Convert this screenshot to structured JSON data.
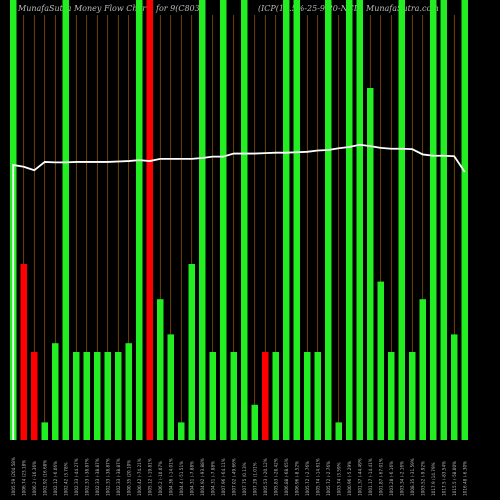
{
  "header": {
    "left": "MunafaSutra Money Flow Charts for 9(C803",
    "mid": "(ICP(10.5%-25-9-20-NCD)",
    "right": "MunafaSutra.com"
  },
  "colors": {
    "background": "#000000",
    "up": "#22ee22",
    "down": "#ff0000",
    "gridline": "#b86a10",
    "line": "#ffffff"
  },
  "chart_data": {
    "type": "bar",
    "ylim": [
      0,
      100
    ],
    "categories": [
      "1005.59 (204.58%",
      "1006.74 (23.18%",
      "1006.2 (-16.36%",
      "1002.92 (16.68%",
      "1002.12 (-6.06%",
      "1002.42 (3.78%",
      "1002.33 (-44.27%",
      "1002.33 (-38.87%",
      "1002.33 (-38.87%",
      "1002.33 (-38.87%",
      "1002.33 (-38.87%",
      "1000.35 (20.10%",
      "1000.42 (-74.21%",
      "1005.12 (-19.81%",
      "1006.2 (-10.07%",
      "1004.36 (-14.01%",
      "1004.4 (-51.51%",
      "1004.31 (-7.88%",
      "1004.92 (-93.88%",
      "1004.31 (-7.88%",
      "1007.96 (-64.11%",
      "1007.02 (-49.66%",
      "1007.75 (0.13%",
      "1007.29 (1.01%",
      "1005.53 (-20.12%",
      "1005.83 (-28.42%",
      "1006.88 (-68.65%",
      "1006.96 (-8.52%",
      "1005.72 (-2.76%",
      "1005.74 (-14.61%",
      "1005.72 (-2.76%",
      "1003.74 (3.59%",
      "1000.96 (-5.29%",
      "1001.37 (-44.49%",
      "1001.17 (-14.41%",
      "1001.87 (-67.01%",
      "1003.28 (-6.16%",
      "1003.34 (-2.16%",
      "1008.35 (-31.59%",
      "1003.52 (-9.92%",
      "1017.9 (14.79%",
      "1017.5 (-83.54%",
      "1015.5 (-58.00%",
      "1016.48 (-6.30%"
    ],
    "colors": [
      "up",
      "down",
      "down",
      "up",
      "up",
      "up",
      "up",
      "up",
      "up",
      "up",
      "up",
      "up",
      "up",
      "down",
      "up",
      "up",
      "up",
      "up",
      "up",
      "up",
      "up",
      "up",
      "up",
      "up",
      "down",
      "up",
      "up",
      "up",
      "up",
      "up",
      "up",
      "up",
      "up",
      "up",
      "up",
      "up",
      "up",
      "up",
      "up",
      "up",
      "up",
      "up",
      "up",
      "up"
    ],
    "values": [
      100,
      40,
      20,
      4,
      22,
      100,
      20,
      20,
      20,
      20,
      20,
      22,
      100,
      100,
      32,
      24,
      4,
      40,
      100,
      20,
      100,
      20,
      100,
      8,
      20,
      20,
      100,
      100,
      20,
      20,
      100,
      4,
      100,
      100,
      80,
      36,
      20,
      100,
      20,
      32,
      100,
      100,
      24,
      100
    ],
    "line": [
      62.5,
      62.1,
      61.3,
      63.2,
      63.1,
      63.1,
      63.2,
      63.2,
      63.2,
      63.2,
      63.3,
      63.4,
      63.6,
      63.4,
      63.9,
      63.9,
      63.9,
      63.9,
      64.1,
      64.4,
      64.4,
      65.1,
      65.1,
      65.1,
      65.2,
      65.3,
      65.3,
      65.4,
      65.5,
      65.8,
      65.9,
      66.3,
      66.6,
      67.1,
      66.8,
      66.4,
      66.2,
      66.2,
      66.1,
      64.9,
      64.6,
      64.6,
      64.5,
      60.9
    ]
  }
}
